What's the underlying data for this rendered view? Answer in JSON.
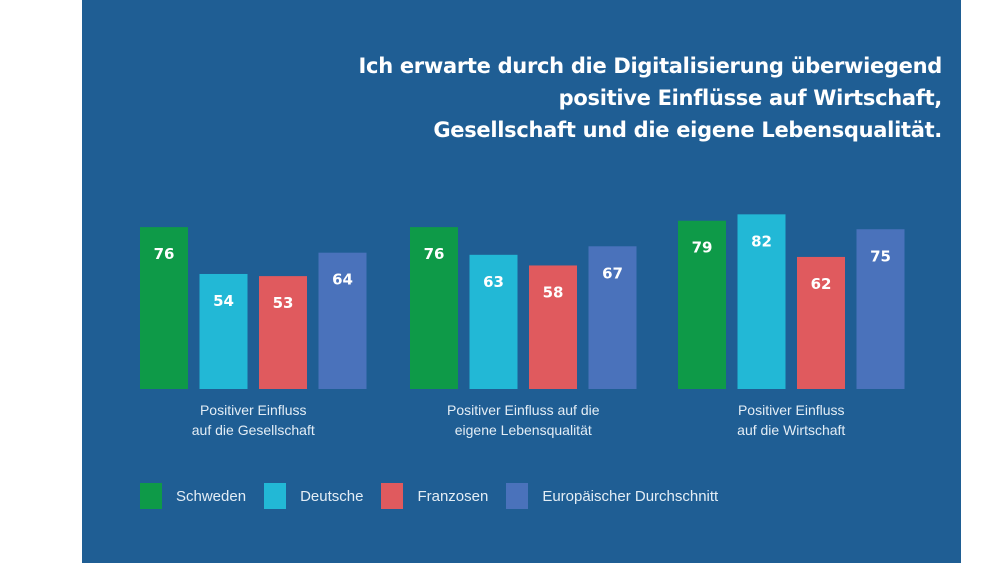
{
  "chart_data": {
    "type": "bar",
    "title": "Ich erwarte durch die Digitalisierung überwiegend positive Einflüsse auf Wirtschaft, Gesellschaft und die eigene Lebensqualität.",
    "title_lines": [
      "Ich erwarte durch die Digitalisierung überwiegend",
      "positive Einflüsse auf Wirtschaft,",
      "Gesellschaft und die eigene Lebensqualität."
    ],
    "xlabel": "",
    "ylabel": "",
    "ylim": [
      0,
      100
    ],
    "grid": false,
    "unit": "%",
    "categories": [
      "Positiver Einfluss auf die Gesellschaft",
      "Positiver Einfluss auf die eigene Lebensqualität",
      "Positiver Einfluss auf die Wirtschaft"
    ],
    "category_label_lines": [
      [
        "Positiver Einfluss",
        "auf die Gesellschaft"
      ],
      [
        "Positiver Einfluss auf die",
        "eigene Lebensqualität"
      ],
      [
        "Positiver Einfluss",
        "auf die Wirtschaft"
      ]
    ],
    "series": [
      {
        "name": "Schweden",
        "color": "#0e9a48",
        "values": [
          76,
          76,
          79
        ]
      },
      {
        "name": "Deutsche",
        "color": "#22b8d6",
        "values": [
          54,
          63,
          82
        ]
      },
      {
        "name": "Franzosen",
        "color": "#e05a5e",
        "values": [
          53,
          58,
          62
        ]
      },
      {
        "name": "Europäischer Durchschnitt",
        "color": "#4a72bb",
        "values": [
          64,
          67,
          75
        ]
      }
    ],
    "legend_position": "bottom-left",
    "data_labels": true
  },
  "colors": {
    "background": "#1f5e94",
    "page": "#ffffff",
    "text": "#ffffff"
  }
}
